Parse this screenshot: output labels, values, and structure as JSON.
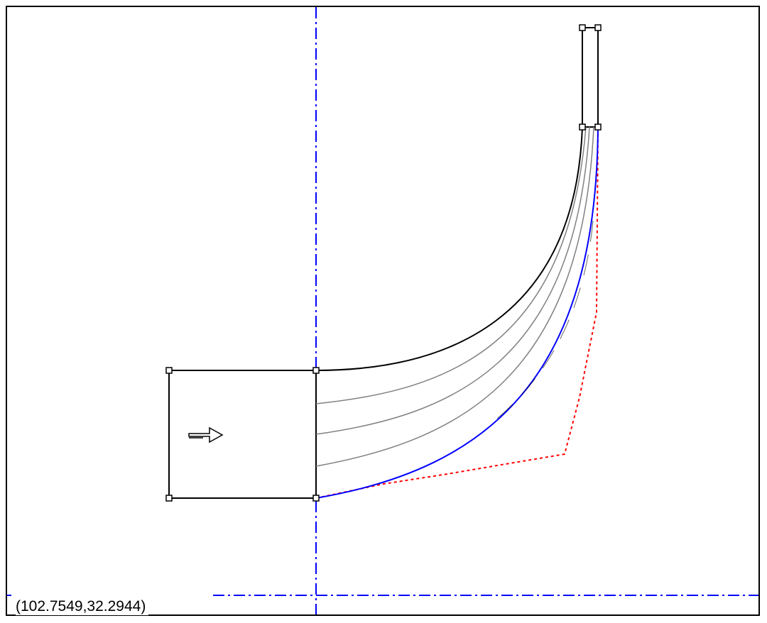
{
  "coordinate_readout": "(102.7549,32.2944)",
  "colors": {
    "axis": "#0000ff",
    "outline": "#000000",
    "streamline": "#808080",
    "hub": "#0000ff",
    "control_polygon": "#ff0000"
  },
  "icons": {
    "flow_arrow": "flow-direction-arrow-icon",
    "handle": "square-handle-icon"
  }
}
